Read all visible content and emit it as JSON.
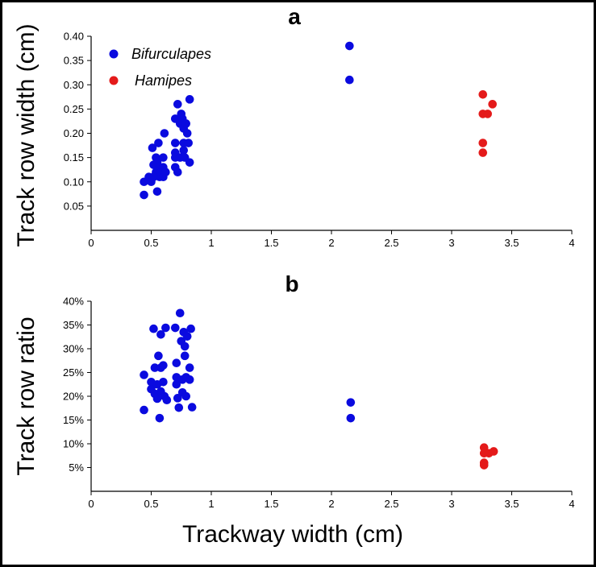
{
  "xlabel": "Trackway width (cm)",
  "colors": {
    "bifurculapes": "#0a0adf",
    "hamipes": "#e41a1a"
  },
  "legend": [
    {
      "name": "Bifurculapes",
      "color": "#0a0adf"
    },
    {
      "name": "Hamipes",
      "color": "#e41a1a"
    }
  ],
  "chart_data": [
    {
      "type": "scatter",
      "title": "a",
      "xlabel": "",
      "ylabel": "Track row width (cm)",
      "xlim": [
        0,
        4
      ],
      "ylim": [
        0,
        0.4
      ],
      "x_ticks": [
        "0",
        "0.5",
        "1",
        "1.5",
        "2",
        "2.5",
        "3",
        "3.5",
        "4"
      ],
      "y_ticks": [
        "0.05",
        "0.10",
        "0.15",
        "0.20",
        "0.25",
        "0.30",
        "0.35",
        "0.40"
      ],
      "x_tick_values": [
        0,
        0.5,
        1,
        1.5,
        2,
        2.5,
        3,
        3.5,
        4
      ],
      "y_tick_values": [
        0.05,
        0.1,
        0.15,
        0.2,
        0.25,
        0.3,
        0.35,
        0.4
      ],
      "legend_position": "top-left",
      "series": [
        {
          "name": "Bifurculapes",
          "color": "#0a0adf",
          "points": [
            [
              0.44,
              0.1
            ],
            [
              0.44,
              0.073
            ],
            [
              0.48,
              0.11
            ],
            [
              0.5,
              0.1
            ],
            [
              0.51,
              0.17
            ],
            [
              0.52,
              0.11
            ],
            [
              0.52,
              0.135
            ],
            [
              0.54,
              0.12
            ],
            [
              0.54,
              0.15
            ],
            [
              0.55,
              0.08
            ],
            [
              0.55,
              0.14
            ],
            [
              0.56,
              0.18
            ],
            [
              0.57,
              0.11
            ],
            [
              0.57,
              0.13
            ],
            [
              0.58,
              0.12
            ],
            [
              0.6,
              0.15
            ],
            [
              0.6,
              0.13
            ],
            [
              0.6,
              0.11
            ],
            [
              0.61,
              0.2
            ],
            [
              0.62,
              0.12
            ],
            [
              0.7,
              0.23
            ],
            [
              0.7,
              0.18
            ],
            [
              0.7,
              0.16
            ],
            [
              0.7,
              0.15
            ],
            [
              0.7,
              0.13
            ],
            [
              0.72,
              0.26
            ],
            [
              0.72,
              0.12
            ],
            [
              0.74,
              0.22
            ],
            [
              0.74,
              0.15
            ],
            [
              0.75,
              0.24
            ],
            [
              0.76,
              0.23
            ],
            [
              0.77,
              0.21
            ],
            [
              0.77,
              0.18
            ],
            [
              0.77,
              0.165
            ],
            [
              0.78,
              0.15
            ],
            [
              0.79,
              0.22
            ],
            [
              0.8,
              0.2
            ],
            [
              0.81,
              0.18
            ],
            [
              0.82,
              0.27
            ],
            [
              0.82,
              0.14
            ]
          ]
        },
        {
          "name": "Bifurculapes",
          "color": "#0a0adf",
          "points": [
            [
              2.15,
              0.38
            ],
            [
              2.15,
              0.31
            ]
          ]
        },
        {
          "name": "Hamipes",
          "color": "#e41a1a",
          "points": [
            [
              3.26,
              0.28
            ],
            [
              3.26,
              0.24
            ],
            [
              3.3,
              0.24
            ],
            [
              3.34,
              0.26
            ],
            [
              3.26,
              0.18
            ],
            [
              3.26,
              0.16
            ]
          ]
        }
      ]
    },
    {
      "type": "scatter",
      "title": "b",
      "xlabel": "Trackway width (cm)",
      "ylabel": "Track row ratio",
      "xlim": [
        0,
        4
      ],
      "ylim": [
        0,
        40
      ],
      "x_ticks": [
        "0",
        "0.5",
        "1",
        "1.5",
        "2",
        "2.5",
        "3",
        "3.5",
        "4"
      ],
      "y_ticks": [
        "5%",
        "10%",
        "15%",
        "20%",
        "25%",
        "30%",
        "35%",
        "40%"
      ],
      "x_tick_values": [
        0,
        0.5,
        1,
        1.5,
        2,
        2.5,
        3,
        3.5,
        4
      ],
      "y_tick_values": [
        5,
        10,
        15,
        20,
        25,
        30,
        35,
        40
      ],
      "series": [
        {
          "name": "Bifurculapes",
          "color": "#0a0adf",
          "points": [
            [
              0.44,
              24.5
            ],
            [
              0.44,
              17.1
            ],
            [
              0.5,
              23.0
            ],
            [
              0.5,
              21.5
            ],
            [
              0.52,
              34.2
            ],
            [
              0.53,
              26.0
            ],
            [
              0.53,
              20.5
            ],
            [
              0.55,
              22.5
            ],
            [
              0.55,
              19.5
            ],
            [
              0.56,
              28.5
            ],
            [
              0.57,
              15.4
            ],
            [
              0.58,
              26.0
            ],
            [
              0.58,
              33.0
            ],
            [
              0.58,
              21.0
            ],
            [
              0.6,
              26.5
            ],
            [
              0.6,
              23.0
            ],
            [
              0.61,
              20.0
            ],
            [
              0.62,
              34.4
            ],
            [
              0.63,
              19.2
            ],
            [
              0.7,
              34.4
            ],
            [
              0.71,
              27.0
            ],
            [
              0.71,
              24.0
            ],
            [
              0.71,
              22.5
            ],
            [
              0.72,
              19.6
            ],
            [
              0.73,
              17.6
            ],
            [
              0.74,
              37.5
            ],
            [
              0.75,
              31.6
            ],
            [
              0.76,
              20.8
            ],
            [
              0.76,
              23.5
            ],
            [
              0.77,
              33.5
            ],
            [
              0.78,
              30.5
            ],
            [
              0.78,
              28.5
            ],
            [
              0.79,
              24.0
            ],
            [
              0.79,
              20.0
            ],
            [
              0.8,
              32.6
            ],
            [
              0.82,
              26.0
            ],
            [
              0.82,
              23.5
            ],
            [
              0.83,
              34.2
            ],
            [
              0.84,
              17.7
            ]
          ]
        },
        {
          "name": "Bifurculapes",
          "color": "#0a0adf",
          "points": [
            [
              2.16,
              18.7
            ],
            [
              2.16,
              15.4
            ]
          ]
        },
        {
          "name": "Hamipes",
          "color": "#e41a1a",
          "points": [
            [
              3.27,
              9.2
            ],
            [
              3.27,
              8.0
            ],
            [
              3.31,
              8.0
            ],
            [
              3.35,
              8.4
            ],
            [
              3.27,
              6.0
            ],
            [
              3.27,
              5.5
            ]
          ]
        }
      ]
    }
  ]
}
